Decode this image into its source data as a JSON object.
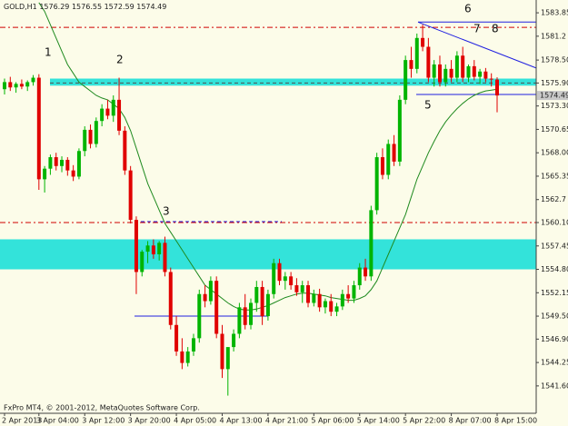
{
  "chart_data": {
    "type": "candlestick",
    "title": "GOLD,H1",
    "footer": "FxPro MT4, © 2001-2012, MetaQuotes Software Corp.",
    "categories": [
      "2 Apr 2013",
      null,
      null,
      null,
      null,
      null,
      "3 Apr 04:00",
      null,
      null,
      null,
      null,
      null,
      null,
      null,
      "3 Apr 12:00",
      null,
      null,
      null,
      null,
      null,
      null,
      null,
      "3 Apr 20:00",
      null,
      null,
      null,
      null,
      null,
      null,
      null,
      "4 Apr 05:00",
      null,
      null,
      null,
      null,
      null,
      null,
      null,
      "4 Apr 13:00",
      null,
      null,
      null,
      null,
      null,
      null,
      null,
      "4 Apr 21:00",
      null,
      null,
      null,
      null,
      null,
      null,
      null,
      "5 Apr 06:00",
      null,
      null,
      null,
      null,
      null,
      null,
      null,
      "5 Apr 14:00",
      null,
      null,
      null,
      null,
      null,
      null,
      null,
      "5 Apr 22:00",
      null,
      null,
      null,
      null,
      null,
      null,
      null,
      "8 Apr 07:00",
      null,
      null,
      null,
      null,
      null,
      null,
      null,
      "8 Apr 15:00"
    ],
    "candles": {
      "open": [
        1575.2,
        1576.0,
        1575.4,
        1575.8,
        1575.5,
        1576.0,
        1576.5,
        1565.0,
        1566.2,
        1567.5,
        1566.5,
        1567.2,
        1566.0,
        1565.3,
        1568.2,
        1570.6,
        1569.0,
        1571.6,
        1573.0,
        1572.2,
        1574.0,
        1570.5,
        1566.0,
        1560.4,
        1554.5,
        1556.8,
        1557.5,
        1556.5,
        1557.8,
        1554.5,
        1548.5,
        1545.5,
        1544.2,
        1545.5,
        1547.0,
        1552.0,
        1551.2,
        1553.5,
        1547.5,
        1543.5,
        1546.0,
        1547.5,
        1550.5,
        1548.5,
        1551.0,
        1552.8,
        1549.5,
        1552.0,
        1555.5,
        1553.5,
        1554.0,
        1553.0,
        1552.2,
        1553.0,
        1551.0,
        1552.0,
        1550.5,
        1551.2,
        1550.0,
        1550.6,
        1552.0,
        1551.5,
        1553.0,
        1555.0,
        1554.0,
        1561.5,
        1567.5,
        1565.5,
        1569.0,
        1567.0,
        1574.0,
        1578.5,
        1577.5,
        1581.0,
        1580.0,
        1576.5,
        1578.0,
        1576.0,
        1577.5,
        1576.5,
        1579.0,
        1576.5,
        1577.8,
        1576.6,
        1577.2,
        1576.4,
        1576.29
      ],
      "high": [
        1576.4,
        1576.6,
        1576.0,
        1576.3,
        1576.2,
        1576.8,
        1576.9,
        1566.5,
        1567.8,
        1568.0,
        1567.6,
        1567.5,
        1566.6,
        1568.5,
        1571.0,
        1571.2,
        1572.0,
        1573.5,
        1574.0,
        1574.5,
        1576.5,
        1571.0,
        1566.5,
        1560.8,
        1557.0,
        1558.0,
        1558.2,
        1558.0,
        1558.5,
        1555.0,
        1549.5,
        1547.0,
        1546.0,
        1547.5,
        1552.5,
        1553.0,
        1554.0,
        1554.0,
        1548.5,
        1544.0,
        1548.0,
        1551.0,
        1552.0,
        1551.5,
        1553.5,
        1553.5,
        1552.5,
        1556.0,
        1556.0,
        1554.5,
        1554.5,
        1553.8,
        1553.5,
        1553.5,
        1552.5,
        1552.6,
        1551.5,
        1552.0,
        1551.0,
        1552.5,
        1553.0,
        1553.5,
        1555.5,
        1556.0,
        1562.0,
        1568.0,
        1568.5,
        1569.5,
        1570.0,
        1574.5,
        1579.0,
        1580.0,
        1581.5,
        1582.5,
        1581.0,
        1578.5,
        1579.0,
        1578.0,
        1578.5,
        1579.5,
        1580.0,
        1578.0,
        1578.5,
        1577.5,
        1577.6,
        1577.0,
        1576.55
      ],
      "low": [
        1574.6,
        1575.0,
        1574.8,
        1575.2,
        1575.0,
        1575.6,
        1563.8,
        1563.5,
        1565.5,
        1566.0,
        1565.8,
        1565.4,
        1564.8,
        1565.0,
        1567.6,
        1568.5,
        1568.6,
        1571.0,
        1571.8,
        1571.5,
        1570.0,
        1565.5,
        1560.0,
        1552.0,
        1554.0,
        1555.5,
        1556.0,
        1555.8,
        1554.0,
        1548.0,
        1545.0,
        1543.5,
        1543.8,
        1545.0,
        1546.5,
        1550.5,
        1550.8,
        1547.0,
        1542.5,
        1540.5,
        1545.5,
        1547.0,
        1548.0,
        1548.0,
        1550.0,
        1548.5,
        1549.0,
        1551.5,
        1553.0,
        1552.5,
        1552.5,
        1551.8,
        1551.0,
        1550.5,
        1550.6,
        1550.0,
        1549.8,
        1549.5,
        1549.5,
        1550.2,
        1551.0,
        1551.0,
        1552.5,
        1553.5,
        1553.5,
        1561.0,
        1565.0,
        1565.0,
        1566.5,
        1566.5,
        1573.5,
        1576.5,
        1577.0,
        1579.5,
        1576.0,
        1575.5,
        1575.5,
        1575.5,
        1576.0,
        1576.0,
        1576.0,
        1576.0,
        1576.2,
        1575.8,
        1576.0,
        1575.5,
        1572.59
      ],
      "close": [
        1576.0,
        1575.4,
        1575.8,
        1575.5,
        1576.0,
        1576.5,
        1565.0,
        1566.2,
        1567.5,
        1566.5,
        1567.2,
        1566.0,
        1565.3,
        1568.2,
        1570.6,
        1569.0,
        1571.6,
        1573.0,
        1572.2,
        1574.0,
        1570.5,
        1566.0,
        1560.4,
        1554.5,
        1556.8,
        1557.5,
        1556.5,
        1557.8,
        1554.5,
        1548.5,
        1545.5,
        1544.2,
        1545.5,
        1547.0,
        1552.0,
        1551.2,
        1553.5,
        1547.5,
        1543.5,
        1546.0,
        1547.5,
        1550.5,
        1548.5,
        1551.0,
        1552.8,
        1549.5,
        1552.0,
        1555.5,
        1553.5,
        1554.0,
        1553.0,
        1552.2,
        1553.0,
        1551.0,
        1552.0,
        1550.5,
        1551.2,
        1550.0,
        1550.6,
        1552.0,
        1551.5,
        1553.0,
        1555.0,
        1554.0,
        1561.5,
        1567.5,
        1565.5,
        1569.0,
        1567.0,
        1574.0,
        1578.5,
        1577.5,
        1581.0,
        1580.0,
        1576.5,
        1578.0,
        1576.0,
        1577.5,
        1576.5,
        1579.0,
        1576.5,
        1577.8,
        1576.6,
        1577.2,
        1576.4,
        1576.29,
        1574.49
      ]
    },
    "bull_color": "#00b400",
    "bear_color": "#e00000",
    "ma": {
      "color": "#1f8a1f",
      "values": [
        null,
        null,
        null,
        null,
        null,
        null,
        1585,
        1584,
        1582.5,
        1581,
        1579.5,
        1578,
        1577,
        1576,
        1575.5,
        1575,
        1574.5,
        1574.2,
        1574,
        1573.5,
        1573,
        1572,
        1570.5,
        1568.5,
        1566.5,
        1564.5,
        1563,
        1561.5,
        1560,
        1559,
        1558,
        1557,
        1556,
        1555,
        1554,
        1553,
        1552.5,
        1552,
        1551.5,
        1551,
        1550.6,
        1550.3,
        1550.2,
        1550.2,
        1550.3,
        1550.5,
        1550.7,
        1551,
        1551.3,
        1551.6,
        1551.8,
        1552,
        1552.1,
        1552.1,
        1552,
        1551.9,
        1551.8,
        1551.6,
        1551.5,
        1551.4,
        1551.3,
        1551.3,
        1551.5,
        1551.8,
        1552.5,
        1553.5,
        1555,
        1556.5,
        1558,
        1559.5,
        1561,
        1563,
        1565,
        1566.5,
        1568,
        1569.3,
        1570.5,
        1571.5,
        1572.3,
        1573,
        1573.6,
        1574.1,
        1574.5,
        1574.8,
        1575,
        1575.1,
        1575.2
      ]
    },
    "zones": [
      {
        "low": 1575.6,
        "high": 1576.4
      },
      {
        "low": 1554.8,
        "high": 1558.2
      }
    ],
    "zone_color": "#33e3da",
    "levels": [
      {
        "value": 1582.2,
        "color": "#d00000",
        "style": "dashdot"
      },
      {
        "value": 1560.1,
        "color": "#d00000",
        "style": "dashdot"
      },
      {
        "value": 1560.2,
        "color": "#2020e0",
        "style": "dashed"
      },
      {
        "value": 1549.5,
        "color": "#2020e0",
        "style": "solid"
      },
      {
        "value": 1582.8,
        "color": "#2020e0",
        "style": "solid"
      },
      {
        "value": 1574.6,
        "color": "#2020e0",
        "style": "solid"
      },
      {
        "value": 1575.9,
        "color": "#505050",
        "style": "dashed"
      }
    ],
    "trendline": {
      "values": [
        1582.8,
        1577.6
      ],
      "color": "#2020e0"
    },
    "annotations": [
      "1",
      "2",
      "3",
      "5",
      "6",
      "7",
      "8"
    ],
    "ylim": [
      1538.5,
      1585.3
    ],
    "yticks": [
      1583.85,
      1581.2,
      {
        "value": 1578.5,
        "label": "1578.50"
      },
      {
        "value": 1575.9,
        "label": "1575.90"
      },
      {
        "value": 1573.3,
        "label": "1573.30"
      },
      1570.65,
      {
        "value": 1568.0,
        "label": "1568.00"
      },
      1565.35,
      1562.7,
      {
        "value": 1560.1,
        "label": "1560.10"
      },
      1557.45,
      {
        "value": 1554.8,
        "label": "1554.80"
      },
      1552.15,
      {
        "value": 1549.5,
        "label": "1549.50"
      },
      {
        "value": 1546.9,
        "label": "1546.90"
      },
      1544.25,
      {
        "value": 1541.6,
        "label": "1541.60"
      }
    ]
  }
}
